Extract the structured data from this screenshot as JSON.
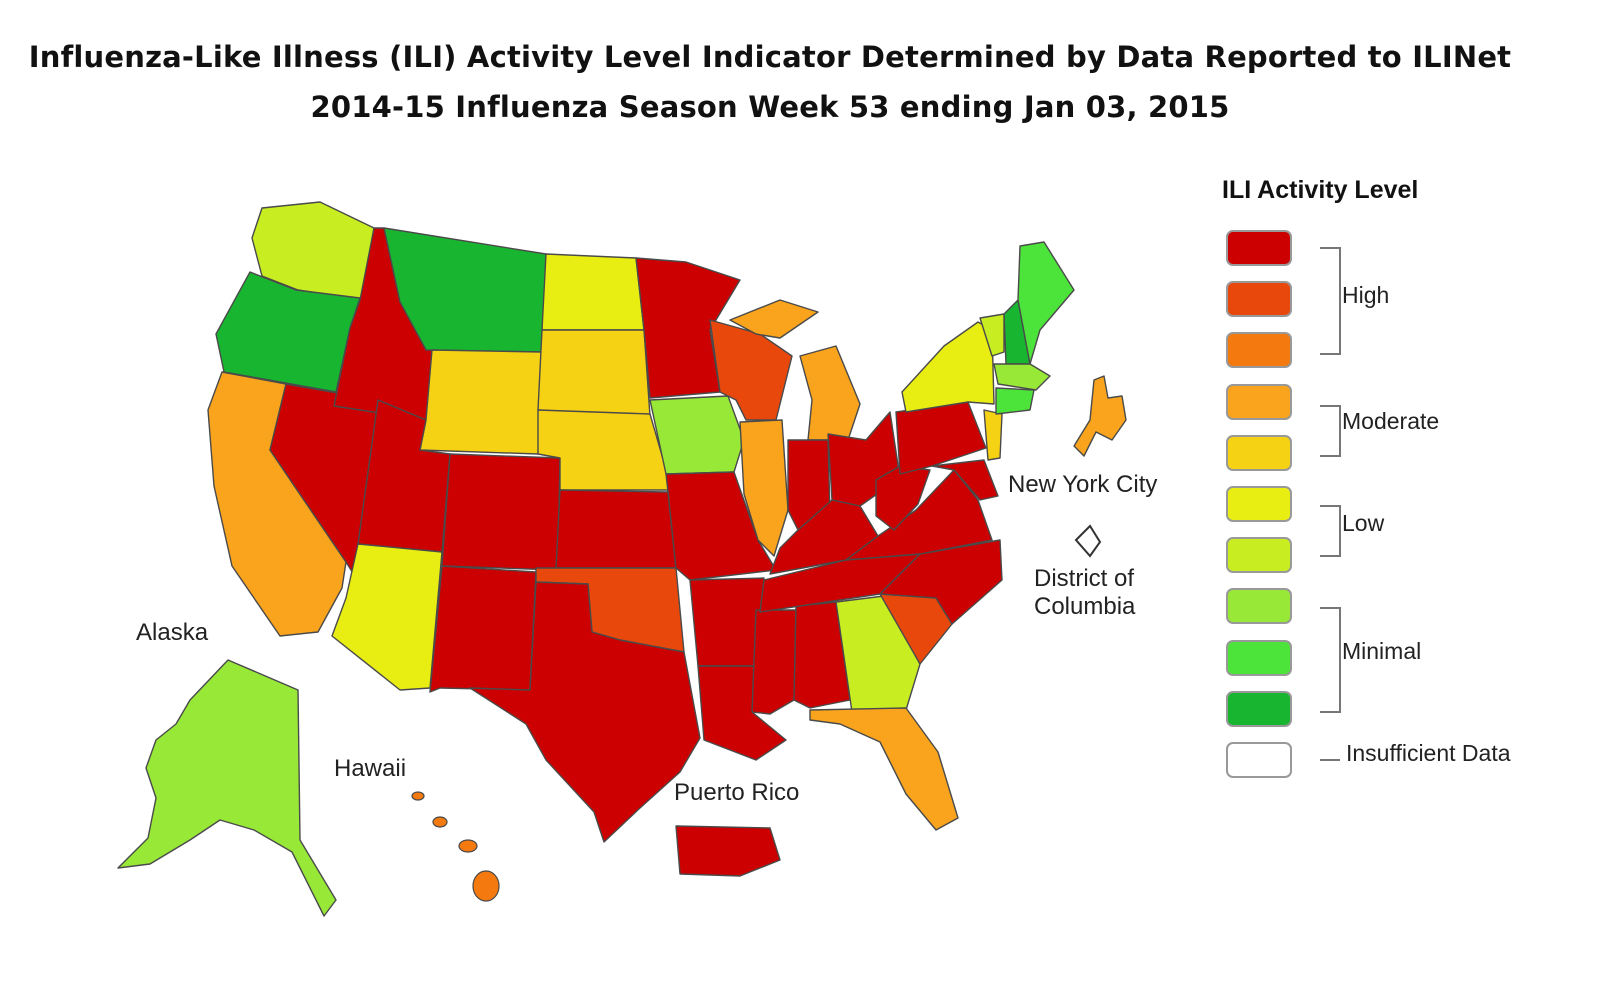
{
  "title": {
    "line1": "Influenza-Like Illness (ILI) Activity Level Indicator Determined by Data Reported to ILINet",
    "line2": "2014-15  Influenza Season Week  53 ending Jan 03, 2015"
  },
  "colors": {
    "high_10": "#cc0000",
    "high_9": "#e8480c",
    "high_8": "#f47a10",
    "moderate_7": "#f9a41c",
    "moderate_6": "#f6d215",
    "low_5": "#e8ee12",
    "low_4": "#c8ee22",
    "minimal_3": "#98e838",
    "minimal_2": "#4ce43a",
    "minimal_1": "#18b630",
    "insufficient": "#ffffff"
  },
  "legend": {
    "title": "ILI Activity Level",
    "groups": {
      "high": "High",
      "moderate": "Moderate",
      "low": "Low",
      "minimal": "Minimal",
      "insufficient": "Insufficient Data"
    },
    "levels": [
      {
        "level": 10,
        "color": "#cc0000"
      },
      {
        "level": 9,
        "color": "#e8480c"
      },
      {
        "level": 8,
        "color": "#f47a10"
      },
      {
        "level": 7,
        "color": "#f9a41c"
      },
      {
        "level": 6,
        "color": "#f6d215"
      },
      {
        "level": 5,
        "color": "#e8ee12"
      },
      {
        "level": 4,
        "color": "#c8ee22"
      },
      {
        "level": 3,
        "color": "#98e838"
      },
      {
        "level": 2,
        "color": "#4ce43a"
      },
      {
        "level": 1,
        "color": "#18b630"
      },
      {
        "level": 0,
        "color": "#ffffff"
      }
    ]
  },
  "map_labels": {
    "nyc": "New York City",
    "dc_line1": "District of",
    "dc_line2": "Columbia",
    "alaska": "Alaska",
    "hawaii": "Hawaii",
    "puerto_rico": "Puerto Rico"
  }
}
